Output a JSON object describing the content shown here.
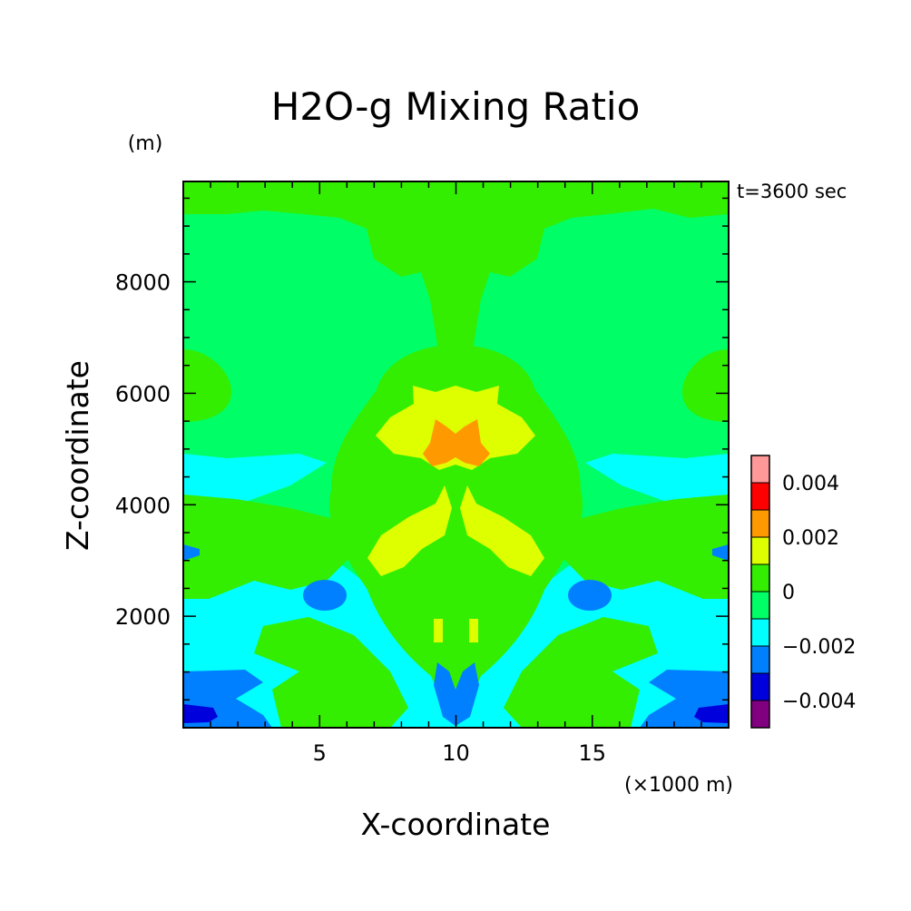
{
  "chart_data": {
    "type": "heatmap",
    "title": "H2O-g Mixing Ratio",
    "subtitle": "t=3600 sec",
    "xlabel": "X-coordinate",
    "ylabel": "Z-coordinate",
    "x_unit": "(×1000 m)",
    "y_unit": "(m)",
    "xlim": [
      0,
      20
    ],
    "ylim": [
      0,
      9800
    ],
    "x_ticks": [
      5,
      10,
      15
    ],
    "y_ticks": [
      2000,
      4000,
      6000,
      8000
    ],
    "colorbar": {
      "tick_labels": [
        "0.004",
        "0.002",
        "0",
        "−0.002",
        "−0.004"
      ],
      "tick_values": [
        0.004,
        0.002,
        0,
        -0.002,
        -0.004
      ],
      "levels": [
        -0.005,
        -0.004,
        -0.003,
        -0.002,
        -0.001,
        0,
        0.001,
        0.002,
        0.003,
        0.004,
        0.005
      ],
      "colors": [
        "#800080",
        "#0000dc",
        "#0080ff",
        "#00ffff",
        "#00ff66",
        "#33ee00",
        "#ddff00",
        "#ff9900",
        "#ff0000",
        "#ff9999"
      ]
    }
  }
}
